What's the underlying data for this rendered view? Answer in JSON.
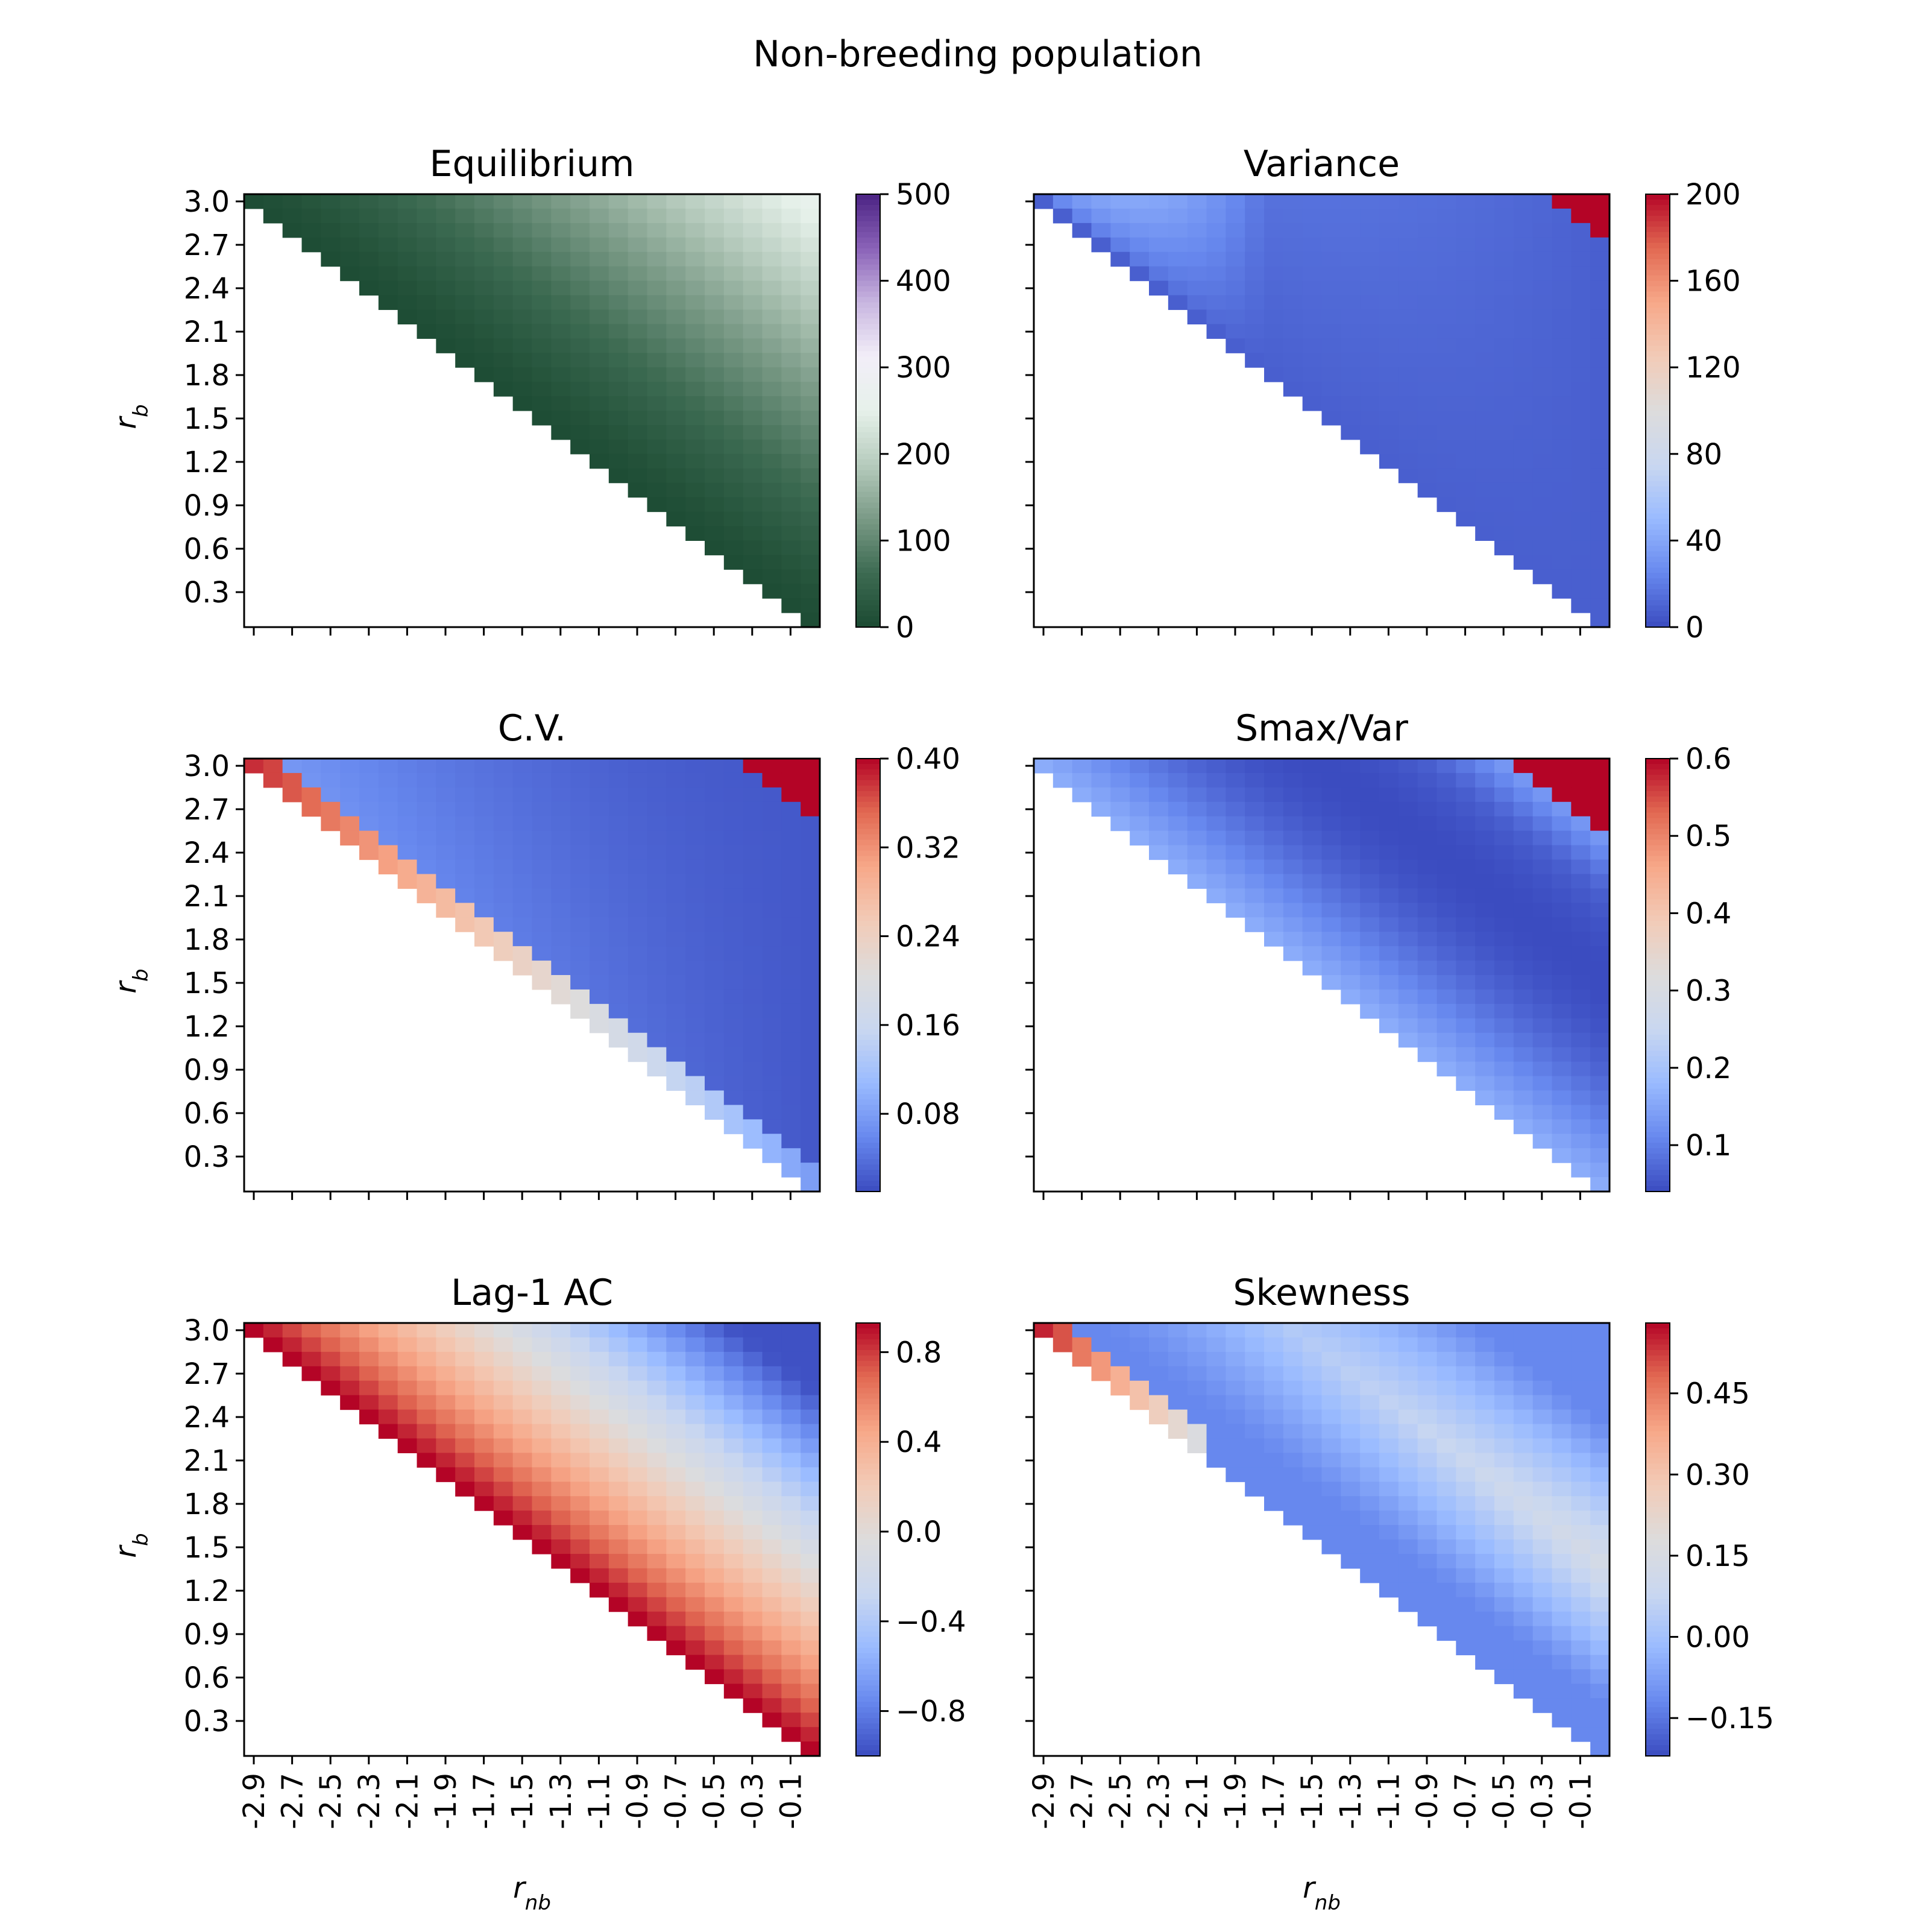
{
  "suptitle": "Non-breeding population",
  "colors": {
    "greens_purple": [
      "#1b4a32",
      "#3d6b52",
      "#7a9a86",
      "#b6cbbd",
      "#e6f1ea",
      "#f2eef8",
      "#c8b6e0",
      "#8a62b8",
      "#4b2383"
    ],
    "coolwarm": [
      "#3b4cc0",
      "#6788ee",
      "#9abbff",
      "#c9d7f0",
      "#dddcdc",
      "#f2cbb7",
      "#f7a889",
      "#e26952",
      "#b40426"
    ]
  },
  "chart_data": [
    {
      "type": "heatmap",
      "title": "Equilibrium",
      "xlabel": "",
      "ylabel": "r_b",
      "colormap": "greens_purple",
      "vmin": 0,
      "vmax": 500,
      "colorbar_ticks": [
        "0",
        "100",
        "200",
        "300",
        "400",
        "500"
      ],
      "field": "equilibrium",
      "x_tick_labels": [],
      "y_tick_labels": [
        "3.0",
        "2.7",
        "2.4",
        "2.1",
        "1.8",
        "1.5",
        "1.2",
        "0.9",
        "0.6",
        "0.3"
      ],
      "x_range": [
        -3.0,
        0.0
      ],
      "y_range": [
        0.1,
        3.0
      ],
      "nonfeasible": "white"
    },
    {
      "type": "heatmap",
      "title": "Variance",
      "xlabel": "",
      "ylabel": "",
      "colormap": "coolwarm",
      "vmin": 0,
      "vmax": 200,
      "colorbar_ticks": [
        "0",
        "40",
        "80",
        "120",
        "160",
        "200"
      ],
      "field": "variance",
      "x_tick_labels": [],
      "y_tick_labels": [],
      "x_range": [
        -3.0,
        0.0
      ],
      "y_range": [
        0.1,
        3.0
      ],
      "nonfeasible": "white"
    },
    {
      "type": "heatmap",
      "title": "C.V.",
      "xlabel": "",
      "ylabel": "r_b",
      "colormap": "coolwarm",
      "vmin": 0.01,
      "vmax": 0.4,
      "colorbar_ticks": [
        "0.08",
        "0.16",
        "0.24",
        "0.32",
        "0.40"
      ],
      "colorbar_tick_values": [
        0.08,
        0.16,
        0.24,
        0.32,
        0.4
      ],
      "field": "cv",
      "x_tick_labels": [],
      "y_tick_labels": [
        "3.0",
        "2.7",
        "2.4",
        "2.1",
        "1.8",
        "1.5",
        "1.2",
        "0.9",
        "0.6",
        "0.3"
      ],
      "x_range": [
        -3.0,
        0.0
      ],
      "y_range": [
        0.1,
        3.0
      ],
      "nonfeasible": "white"
    },
    {
      "type": "heatmap",
      "title": "Smax/Var",
      "xlabel": "",
      "ylabel": "",
      "colormap": "coolwarm",
      "vmin": 0.04,
      "vmax": 0.6,
      "colorbar_ticks": [
        "0.1",
        "0.2",
        "0.3",
        "0.4",
        "0.5",
        "0.6"
      ],
      "colorbar_tick_values": [
        0.1,
        0.2,
        0.3,
        0.4,
        0.5,
        0.6
      ],
      "field": "smax",
      "x_tick_labels": [],
      "y_tick_labels": [],
      "x_range": [
        -3.0,
        0.0
      ],
      "y_range": [
        0.1,
        3.0
      ],
      "nonfeasible": "white"
    },
    {
      "type": "heatmap",
      "title": "Lag-1 AC",
      "xlabel": "r_nb",
      "ylabel": "r_b",
      "colormap": "coolwarm",
      "vmin": -1.0,
      "vmax": 0.93,
      "colorbar_ticks": [
        "−0.8",
        "−0.4",
        "0.0",
        "0.4",
        "0.8"
      ],
      "colorbar_tick_values": [
        -0.8,
        -0.4,
        0.0,
        0.4,
        0.8
      ],
      "field": "lag1",
      "x_tick_labels": [
        "-2.9",
        "-2.7",
        "-2.5",
        "-2.3",
        "-2.1",
        "-1.9",
        "-1.7",
        "-1.5",
        "-1.3",
        "-1.1",
        "-0.9",
        "-0.7",
        "-0.5",
        "-0.3",
        "-0.1"
      ],
      "y_tick_labels": [
        "3.0",
        "2.7",
        "2.4",
        "2.1",
        "1.8",
        "1.5",
        "1.2",
        "0.9",
        "0.6",
        "0.3"
      ],
      "x_range": [
        -3.0,
        0.0
      ],
      "y_range": [
        0.1,
        3.0
      ],
      "nonfeasible": "white"
    },
    {
      "type": "heatmap",
      "title": "Skewness",
      "xlabel": "r_nb",
      "ylabel": "",
      "colormap": "coolwarm",
      "vmin": -0.22,
      "vmax": 0.58,
      "colorbar_ticks": [
        "−0.15",
        "0.00",
        "0.15",
        "0.30",
        "0.45"
      ],
      "colorbar_tick_values": [
        -0.15,
        0.0,
        0.15,
        0.3,
        0.45
      ],
      "field": "skew",
      "x_tick_labels": [
        "-2.9",
        "-2.7",
        "-2.5",
        "-2.3",
        "-2.1",
        "-1.9",
        "-1.7",
        "-1.5",
        "-1.3",
        "-1.1",
        "-0.9",
        "-0.7",
        "-0.5",
        "-0.3",
        "-0.1"
      ],
      "y_tick_labels": [],
      "x_range": [
        -3.0,
        0.0
      ],
      "y_range": [
        0.1,
        3.0
      ],
      "nonfeasible": "white"
    }
  ]
}
